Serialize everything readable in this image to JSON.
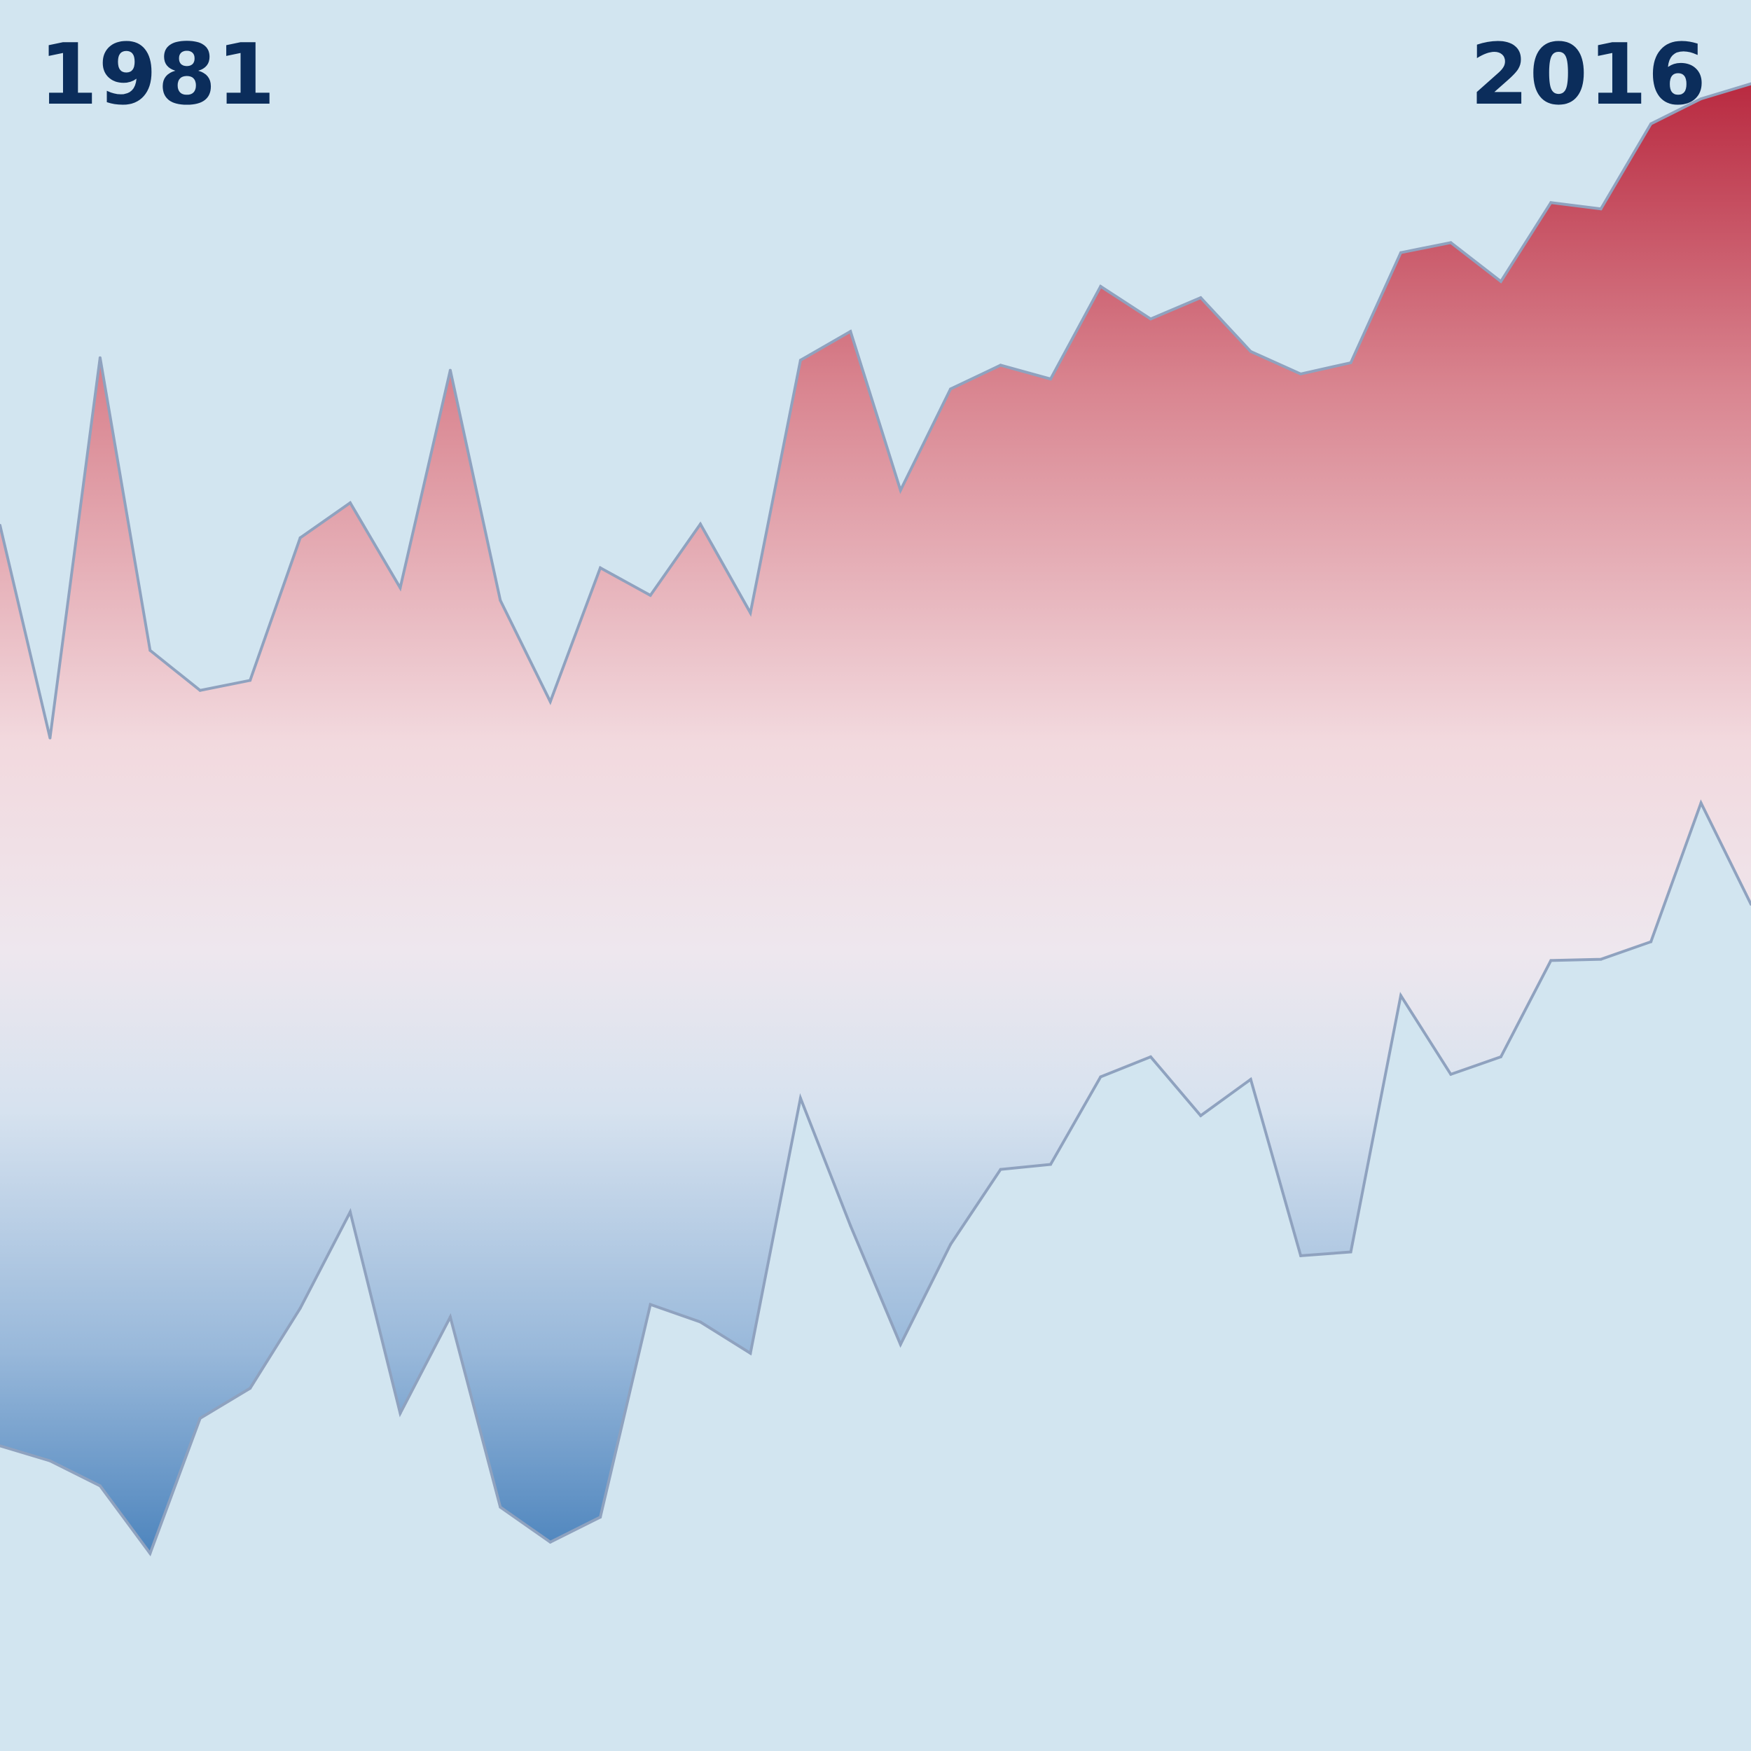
{
  "chart_data": {
    "type": "area",
    "start_year_label": "1981",
    "end_year_label": "2016",
    "x": [
      1981,
      1982,
      1983,
      1984,
      1985,
      1986,
      1987,
      1988,
      1989,
      1990,
      1991,
      1992,
      1993,
      1994,
      1995,
      1996,
      1997,
      1998,
      1999,
      2000,
      2001,
      2002,
      2003,
      2004,
      2005,
      2006,
      2007,
      2008,
      2009,
      2010,
      2011,
      2012,
      2013,
      2014,
      2015,
      2016
    ],
    "series": [
      {
        "values": [
          58.0,
          41.0,
          71.4,
          48.0,
          44.8,
          45.6,
          57.0,
          59.8,
          53.0,
          70.4,
          52.0,
          43.9,
          54.6,
          52.4,
          58.1,
          51.0,
          71.2,
          73.5,
          60.8,
          68.9,
          70.8,
          69.7,
          77.1,
          74.5,
          76.2,
          71.9,
          70.1,
          71.0,
          79.8,
          80.6,
          77.5,
          83.8,
          83.3,
          90.1,
          92.1,
          93.3
        ]
      },
      {
        "values": [
          -15.6,
          -16.8,
          -18.8,
          -24.2,
          -13.4,
          -11.0,
          -4.6,
          3.1,
          -13.0,
          -5.3,
          -20.5,
          -23.3,
          -21.3,
          -4.3,
          -5.7,
          -8.2,
          12.2,
          2.0,
          -7.5,
          0.5,
          6.5,
          6.9,
          13.9,
          15.5,
          10.8,
          13.7,
          -0.4,
          -0.1,
          20.4,
          14.1,
          15.5,
          23.2,
          23.3,
          24.7,
          35.8,
          27.7
        ]
      }
    ],
    "ylim": [
      -40,
      100
    ],
    "grid": false,
    "colors": {
      "background": "#d2e5f0",
      "outline": "#8fa2bf",
      "warm_top": "#b7253c",
      "cool_bottom": "#2166ac",
      "label": "#0b2d5b"
    }
  }
}
